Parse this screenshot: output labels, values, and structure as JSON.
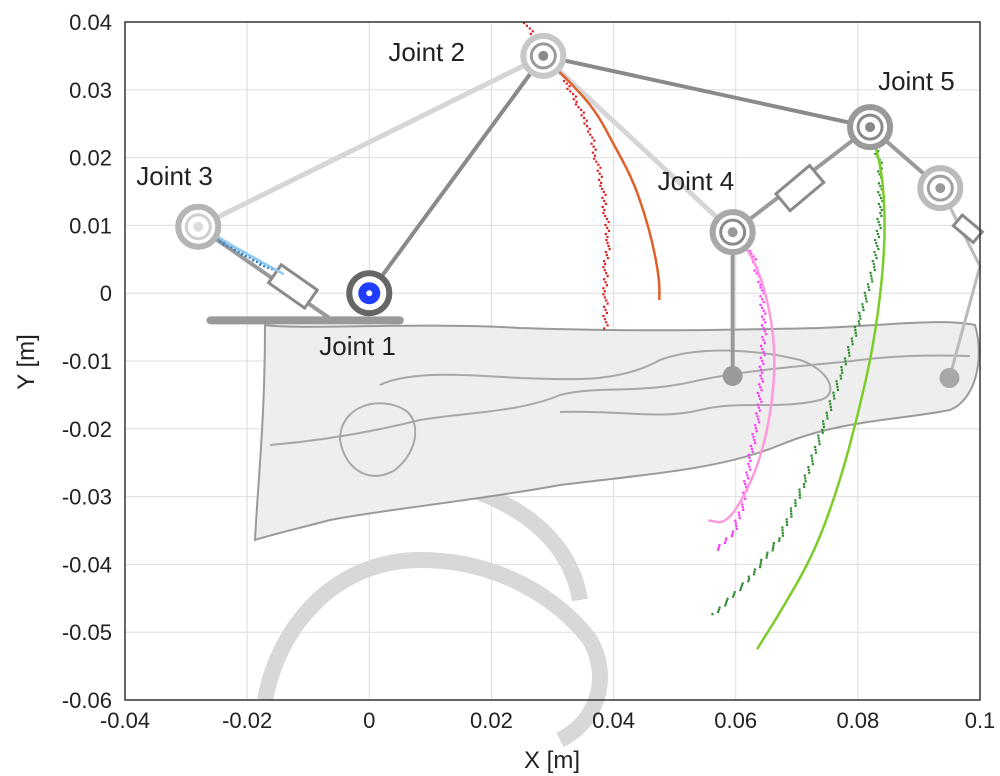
{
  "chart_data": {
    "type": "scatter",
    "xlabel": "X [m]",
    "ylabel": "Y [m]",
    "xlim": [
      -0.04,
      0.1
    ],
    "ylim": [
      -0.06,
      0.04
    ],
    "grid": true,
    "x_ticks": [
      "-0.04",
      "-0.02",
      "0",
      "0.02",
      "0.04",
      "0.06",
      "0.08",
      "0.1"
    ],
    "y_ticks": [
      "0.04",
      "0.03",
      "0.02",
      "0.01",
      "0",
      "-0.01",
      "-0.02",
      "-0.03",
      "-0.04",
      "-0.05",
      "-0.06"
    ],
    "joints": [
      {
        "label": "Joint 1",
        "x": 0.0,
        "y": 0.0,
        "color": "#1f3cff"
      },
      {
        "label": "Joint 2",
        "x": 0.0285,
        "y": 0.035,
        "color": "#999999"
      },
      {
        "label": "Joint 3",
        "x": -0.028,
        "y": 0.0098,
        "color": "#bbbbbb"
      },
      {
        "label": "Joint 4",
        "x": 0.0595,
        "y": 0.009,
        "color": "#999999"
      },
      {
        "label": "Joint 5",
        "x": 0.082,
        "y": 0.0245,
        "color": "#999999"
      }
    ],
    "extra_joint": {
      "x": 0.0935,
      "y": 0.0155
    },
    "trajectories": [
      {
        "color": "#e02020",
        "style": "dots",
        "points": [
          [
            0.0255,
            0.04
          ],
          [
            0.028,
            0.036
          ],
          [
            0.031,
            0.033
          ],
          [
            0.034,
            0.028
          ],
          [
            0.036,
            0.024
          ],
          [
            0.037,
            0.02
          ],
          [
            0.038,
            0.016
          ],
          [
            0.0385,
            0.012
          ],
          [
            0.039,
            0.008
          ],
          [
            0.0385,
            0.004
          ],
          [
            0.0385,
            0.0
          ],
          [
            0.0385,
            -0.0055
          ]
        ]
      },
      {
        "color": "#e0602a",
        "style": "line",
        "points": [
          [
            0.029,
            0.0345
          ],
          [
            0.033,
            0.031
          ],
          [
            0.037,
            0.027
          ],
          [
            0.04,
            0.022
          ],
          [
            0.043,
            0.017
          ],
          [
            0.045,
            0.012
          ],
          [
            0.0465,
            0.007
          ],
          [
            0.0475,
            0.002
          ],
          [
            0.0475,
            -0.001
          ]
        ]
      },
      {
        "color": "#2b7fc9",
        "style": "dots",
        "points": [
          [
            -0.028,
            0.0095
          ],
          [
            -0.025,
            0.008
          ],
          [
            -0.022,
            0.0065
          ],
          [
            -0.019,
            0.005
          ],
          [
            -0.016,
            0.0035
          ]
        ]
      },
      {
        "color": "#8ec8f0",
        "style": "line",
        "points": [
          [
            -0.0275,
            0.01
          ],
          [
            -0.024,
            0.0078
          ],
          [
            -0.02,
            0.0058
          ],
          [
            -0.016,
            0.0038
          ],
          [
            -0.014,
            0.0028
          ]
        ]
      },
      {
        "color": "#ff33ff",
        "style": "dots",
        "points": [
          [
            0.0605,
            0.009
          ],
          [
            0.0625,
            0.006
          ],
          [
            0.064,
            0.001
          ],
          [
            0.0645,
            -0.005
          ],
          [
            0.064,
            -0.012
          ],
          [
            0.0635,
            -0.018
          ],
          [
            0.062,
            -0.025
          ],
          [
            0.061,
            -0.031
          ],
          [
            0.0595,
            -0.035
          ],
          [
            0.0565,
            -0.038
          ]
        ]
      },
      {
        "color": "#ff99dd",
        "style": "line",
        "points": [
          [
            0.0605,
            0.0085
          ],
          [
            0.0635,
            0.004
          ],
          [
            0.0655,
            -0.002
          ],
          [
            0.0665,
            -0.009
          ],
          [
            0.066,
            -0.016
          ],
          [
            0.0645,
            -0.023
          ],
          [
            0.062,
            -0.029
          ],
          [
            0.0585,
            -0.034
          ],
          [
            0.0555,
            -0.0335
          ]
        ]
      },
      {
        "color": "#2e8b2e",
        "style": "dots",
        "points": [
          [
            0.082,
            0.0245
          ],
          [
            0.0835,
            0.019
          ],
          [
            0.0835,
            0.012
          ],
          [
            0.0825,
            0.004
          ],
          [
            0.08,
            -0.004
          ],
          [
            0.077,
            -0.012
          ],
          [
            0.074,
            -0.02
          ],
          [
            0.071,
            -0.028
          ],
          [
            0.067,
            -0.036
          ],
          [
            0.062,
            -0.042
          ],
          [
            0.056,
            -0.0475
          ]
        ]
      },
      {
        "color": "#7ccc2a",
        "style": "line",
        "points": [
          [
            0.082,
            0.0245
          ],
          [
            0.084,
            0.018
          ],
          [
            0.0845,
            0.01
          ],
          [
            0.084,
            0.002
          ],
          [
            0.0825,
            -0.008
          ],
          [
            0.08,
            -0.018
          ],
          [
            0.077,
            -0.028
          ],
          [
            0.073,
            -0.038
          ],
          [
            0.068,
            -0.046
          ],
          [
            0.0635,
            -0.0525
          ]
        ]
      }
    ]
  }
}
